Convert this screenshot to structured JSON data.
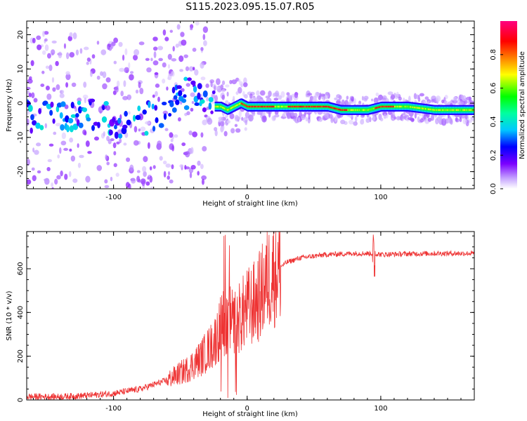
{
  "title": "S115.2023.095.15.07.R05",
  "chart_data": [
    {
      "type": "heatmap",
      "xlabel": "Height of straight line (km)",
      "ylabel": "Frequency (Hz)",
      "xlim": [
        -165,
        170
      ],
      "ylim": [
        -25,
        24
      ],
      "x_ticks": [
        -100,
        0,
        100
      ],
      "y_ticks": [
        -20,
        -10,
        0,
        10,
        20
      ],
      "colorbar": {
        "label": "Normalized spectral amplitude",
        "range": [
          0.0,
          1.0
        ],
        "ticks": [
          0.0,
          0.2,
          0.4,
          0.6,
          0.8
        ]
      },
      "ridge": {
        "x": [
          -165,
          -150,
          -130,
          -110,
          -100,
          -90,
          -80,
          -70,
          -60,
          -50,
          -45,
          -40,
          -35,
          -30,
          -25,
          -20,
          -15,
          -10,
          -5,
          0,
          10,
          20,
          40,
          60,
          70,
          80,
          90,
          100,
          110,
          120,
          140,
          160,
          170
        ],
        "y": [
          -4,
          -3,
          -3,
          -4,
          -5,
          -6,
          -5,
          -4,
          -2,
          1,
          3,
          2,
          1,
          0,
          -1,
          -1,
          -2,
          -1,
          0,
          -1,
          -1,
          -1,
          -1,
          -1,
          -2,
          -2,
          -2,
          -1,
          -1,
          -1,
          -2,
          -2,
          -2
        ]
      }
    },
    {
      "type": "line",
      "xlabel": "Height of straight line (km)",
      "ylabel": "SNR (10 * v/v)",
      "xlim": [
        -165,
        170
      ],
      "ylim": [
        0,
        770
      ],
      "x_ticks": [
        -100,
        0,
        100
      ],
      "y_ticks": [
        0,
        200,
        400,
        600
      ],
      "color": "#ee3333",
      "envelope": {
        "x": [
          -165,
          -140,
          -120,
          -100,
          -80,
          -60,
          -45,
          -35,
          -25,
          -20,
          -15,
          -10,
          -5,
          0,
          5,
          10,
          15,
          20,
          30,
          40,
          60,
          80,
          95,
          100,
          120,
          140,
          170
        ],
        "y": [
          15,
          15,
          20,
          30,
          50,
          90,
          140,
          190,
          260,
          330,
          380,
          350,
          380,
          420,
          440,
          480,
          550,
          590,
          630,
          650,
          665,
          670,
          670,
          665,
          668,
          670,
          670
        ]
      }
    }
  ]
}
